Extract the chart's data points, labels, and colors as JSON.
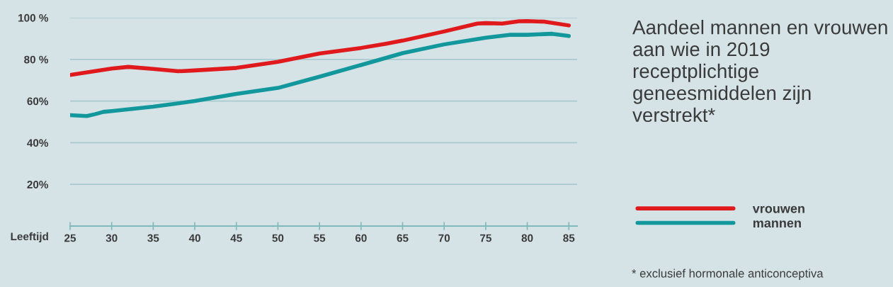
{
  "chart_data": {
    "type": "line",
    "title": "Aandeel mannen en vrouwen aan wie in 2019 receptplichtige geneesmiddelen zijn verstrekt*",
    "xlabel": "Leeftijd",
    "annotations": [
      "* exclusief hormonale anticonceptiva"
    ],
    "series": [
      {
        "name": "vrouwen",
        "color": "#e0191c",
        "x": [
          25,
          30,
          32,
          35,
          38,
          40,
          45,
          50,
          55,
          60,
          63,
          65,
          70,
          74,
          75,
          77,
          79,
          80,
          82,
          85
        ],
        "values": [
          72.5,
          75.6,
          76.4,
          75.4,
          74.3,
          74.7,
          75.9,
          78.8,
          82.8,
          85.5,
          87.5,
          89,
          93.4,
          97.2,
          97.4,
          97.2,
          98.3,
          98.4,
          98.1,
          96.3
        ]
      },
      {
        "name": "mannen",
        "color": "#12989c",
        "x": [
          25,
          27,
          28,
          29,
          30,
          35,
          40,
          45,
          50,
          55,
          60,
          65,
          70,
          75,
          78,
          80,
          83,
          85
        ],
        "values": [
          53.2,
          52.8,
          53.7,
          54.8,
          55.2,
          57.3,
          60.0,
          63.4,
          66.3,
          71.7,
          77.3,
          83,
          87.2,
          90.4,
          91.8,
          91.8,
          92.3,
          91.2
        ]
      }
    ],
    "xlim": [
      25,
      86
    ],
    "xticks": [
      25,
      30,
      35,
      40,
      45,
      50,
      55,
      60,
      65,
      70,
      75,
      80,
      85
    ],
    "ylim": [
      0,
      100
    ],
    "yticks": [
      {
        "value": 20,
        "label": "20%"
      },
      {
        "value": 40,
        "label": "40%"
      },
      {
        "value": 60,
        "label": "60%"
      },
      {
        "value": 80,
        "label": "80 %"
      },
      {
        "value": 100,
        "label": "100 %"
      }
    ],
    "grid": "y",
    "legend": "right",
    "line_style": "solid",
    "marker": "none"
  }
}
